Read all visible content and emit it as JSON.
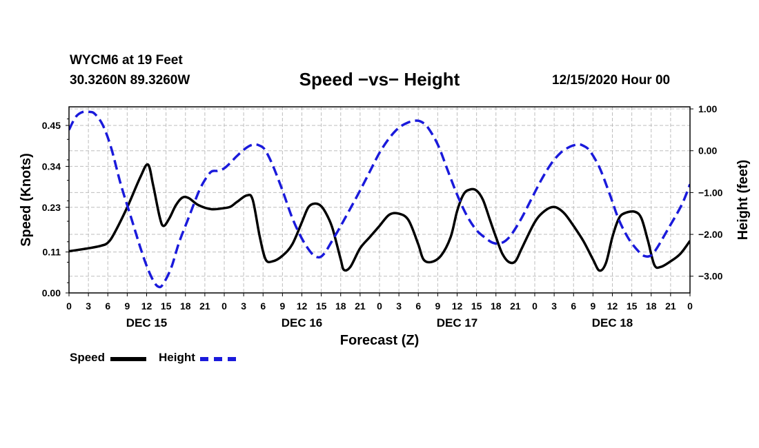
{
  "header": {
    "station": "WYCM6 at 19 Feet",
    "coords": "30.3260N 89.3260W",
    "title": "Speed −vs− Height",
    "datetime": "12/15/2020 Hour 00"
  },
  "legend": {
    "items": [
      {
        "label": "Speed",
        "color": "#000000",
        "style": "solid"
      },
      {
        "label": "Height",
        "color": "#1a1adb",
        "style": "dashed"
      }
    ]
  },
  "chart_data": {
    "type": "line",
    "title": "Speed −vs− Height",
    "xlabel": "Forecast (Z)",
    "ylabel": "Speed (Knots)",
    "y2label": "Height (feet)",
    "grid": true,
    "xlim": [
      0,
      96
    ],
    "ylim": [
      0.0,
      0.5
    ],
    "y2lim": [
      -3.4,
      1.05
    ],
    "x_ticks": [
      0,
      3,
      6,
      9,
      12,
      15,
      18,
      21,
      24,
      27,
      30,
      33,
      36,
      39,
      42,
      45,
      48,
      51,
      54,
      57,
      60,
      63,
      66,
      69,
      72,
      75,
      78,
      81,
      84,
      87,
      90,
      93,
      96
    ],
    "x_tick_labels": [
      "0",
      "3",
      "6",
      "9",
      "12",
      "15",
      "18",
      "21",
      "0",
      "3",
      "6",
      "9",
      "12",
      "15",
      "18",
      "21",
      "0",
      "3",
      "6",
      "9",
      "12",
      "15",
      "18",
      "21",
      "0",
      "3",
      "6",
      "9",
      "12",
      "15",
      "18",
      "21",
      "0"
    ],
    "day_labels": [
      {
        "label": "DEC 15",
        "at": 12
      },
      {
        "label": "DEC 16",
        "at": 36
      },
      {
        "label": "DEC 17",
        "at": 60
      },
      {
        "label": "DEC 18",
        "at": 84
      }
    ],
    "y_ticks": [
      0.0,
      0.11,
      0.23,
      0.34,
      0.45
    ],
    "y_tick_labels": [
      "0.00",
      "0.11",
      "0.23",
      "0.34",
      "0.45"
    ],
    "y2_ticks": [
      1.0,
      0.0,
      -1.0,
      -2.0,
      -3.0
    ],
    "y2_tick_labels": [
      "1.00",
      "0.00",
      "−1.00",
      "−2.00",
      "−3.00"
    ],
    "series": [
      {
        "name": "Speed",
        "axis": "left",
        "color": "#000000",
        "points": [
          [
            0,
            0.112
          ],
          [
            3,
            0.12
          ],
          [
            5,
            0.127
          ],
          [
            6,
            0.135
          ],
          [
            7,
            0.16
          ],
          [
            9,
            0.23
          ],
          [
            11,
            0.31
          ],
          [
            12.2,
            0.345
          ],
          [
            13,
            0.29
          ],
          [
            14,
            0.205
          ],
          [
            14.6,
            0.18
          ],
          [
            15.5,
            0.2
          ],
          [
            16.5,
            0.235
          ],
          [
            17.5,
            0.256
          ],
          [
            18.5,
            0.255
          ],
          [
            20,
            0.236
          ],
          [
            22,
            0.225
          ],
          [
            24,
            0.228
          ],
          [
            25,
            0.232
          ],
          [
            26,
            0.245
          ],
          [
            27.5,
            0.262
          ],
          [
            28.4,
            0.25
          ],
          [
            29.5,
            0.15
          ],
          [
            30.4,
            0.09
          ],
          [
            31.5,
            0.085
          ],
          [
            33,
            0.1
          ],
          [
            34.5,
            0.13
          ],
          [
            36,
            0.19
          ],
          [
            37,
            0.23
          ],
          [
            38,
            0.24
          ],
          [
            39,
            0.233
          ],
          [
            40,
            0.205
          ],
          [
            40.8,
            0.17
          ],
          [
            42,
            0.09
          ],
          [
            42.5,
            0.062
          ],
          [
            43.5,
            0.07
          ],
          [
            45,
            0.12
          ],
          [
            46.5,
            0.15
          ],
          [
            48,
            0.18
          ],
          [
            49.5,
            0.21
          ],
          [
            51,
            0.213
          ],
          [
            52.5,
            0.195
          ],
          [
            54,
            0.13
          ],
          [
            54.8,
            0.09
          ],
          [
            56,
            0.083
          ],
          [
            57.5,
            0.1
          ],
          [
            59,
            0.15
          ],
          [
            60,
            0.22
          ],
          [
            61,
            0.265
          ],
          [
            62,
            0.278
          ],
          [
            63,
            0.275
          ],
          [
            64,
            0.25
          ],
          [
            65,
            0.2
          ],
          [
            66,
            0.15
          ],
          [
            67,
            0.105
          ],
          [
            68,
            0.083
          ],
          [
            69,
            0.085
          ],
          [
            70,
            0.12
          ],
          [
            72,
            0.19
          ],
          [
            73.5,
            0.22
          ],
          [
            75,
            0.231
          ],
          [
            76.5,
            0.215
          ],
          [
            78,
            0.18
          ],
          [
            79.5,
            0.14
          ],
          [
            81,
            0.09
          ],
          [
            82,
            0.06
          ],
          [
            83,
            0.08
          ],
          [
            84,
            0.15
          ],
          [
            85,
            0.2
          ],
          [
            86,
            0.215
          ],
          [
            87.5,
            0.218
          ],
          [
            88.5,
            0.2
          ],
          [
            89.5,
            0.14
          ],
          [
            90.5,
            0.075
          ],
          [
            91.5,
            0.07
          ],
          [
            93,
            0.085
          ],
          [
            94.5,
            0.105
          ],
          [
            96,
            0.14
          ]
        ]
      },
      {
        "name": "Height",
        "axis": "right",
        "color": "#1a1adb",
        "dashed": true,
        "points": [
          [
            0,
            0.5
          ],
          [
            1,
            0.8
          ],
          [
            2,
            0.92
          ],
          [
            3.2,
            0.93
          ],
          [
            4,
            0.88
          ],
          [
            5.2,
            0.62
          ],
          [
            6.5,
            0.08
          ],
          [
            8,
            -0.8
          ],
          [
            9.5,
            -1.55
          ],
          [
            11,
            -2.3
          ],
          [
            12,
            -2.75
          ],
          [
            13,
            -3.1
          ],
          [
            13.8,
            -3.25
          ],
          [
            14.5,
            -3.2
          ],
          [
            15.8,
            -2.8
          ],
          [
            17,
            -2.2
          ],
          [
            18.5,
            -1.6
          ],
          [
            20,
            -1.0
          ],
          [
            21,
            -0.7
          ],
          [
            22,
            -0.5
          ],
          [
            23,
            -0.48
          ],
          [
            24,
            -0.42
          ],
          [
            25,
            -0.28
          ],
          [
            26,
            -0.12
          ],
          [
            27.5,
            0.08
          ],
          [
            28.6,
            0.15
          ],
          [
            29.5,
            0.12
          ],
          [
            30.3,
            0.02
          ],
          [
            31.5,
            -0.35
          ],
          [
            33,
            -0.95
          ],
          [
            34.5,
            -1.6
          ],
          [
            36,
            -2.1
          ],
          [
            37.5,
            -2.45
          ],
          [
            38.6,
            -2.55
          ],
          [
            39.5,
            -2.45
          ],
          [
            40.5,
            -2.2
          ],
          [
            42,
            -1.8
          ],
          [
            43.5,
            -1.38
          ],
          [
            45,
            -0.95
          ],
          [
            46.5,
            -0.5
          ],
          [
            48,
            -0.05
          ],
          [
            49.5,
            0.3
          ],
          [
            51,
            0.55
          ],
          [
            52.5,
            0.68
          ],
          [
            53.7,
            0.72
          ],
          [
            54.6,
            0.68
          ],
          [
            55.5,
            0.55
          ],
          [
            57,
            0.15
          ],
          [
            58.5,
            -0.45
          ],
          [
            60,
            -1.05
          ],
          [
            61.5,
            -1.55
          ],
          [
            63,
            -1.9
          ],
          [
            64.5,
            -2.1
          ],
          [
            65.5,
            -2.2
          ],
          [
            66.5,
            -2.22
          ],
          [
            67.5,
            -2.15
          ],
          [
            68.5,
            -1.98
          ],
          [
            70,
            -1.6
          ],
          [
            71.5,
            -1.15
          ],
          [
            73,
            -0.7
          ],
          [
            74.5,
            -0.32
          ],
          [
            76,
            -0.05
          ],
          [
            77.5,
            0.1
          ],
          [
            78.7,
            0.15
          ],
          [
            79.5,
            0.12
          ],
          [
            80.5,
            0.0
          ],
          [
            82,
            -0.4
          ],
          [
            83.5,
            -1.0
          ],
          [
            85,
            -1.65
          ],
          [
            86.5,
            -2.1
          ],
          [
            88,
            -2.4
          ],
          [
            89,
            -2.52
          ],
          [
            90,
            -2.5
          ],
          [
            91,
            -2.3
          ],
          [
            92.5,
            -1.9
          ],
          [
            94,
            -1.5
          ],
          [
            95,
            -1.2
          ],
          [
            96,
            -0.8
          ]
        ]
      }
    ]
  }
}
